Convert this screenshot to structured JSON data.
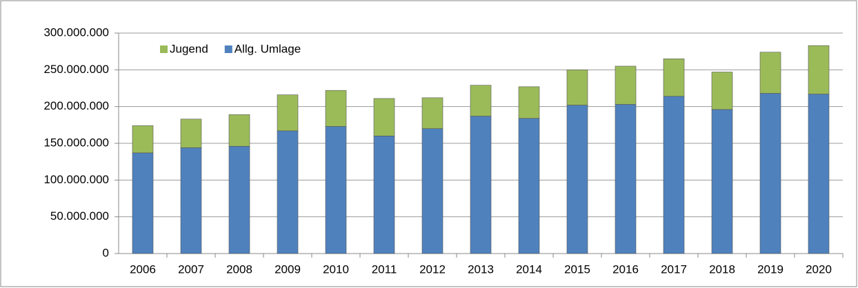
{
  "chart_data": {
    "type": "stacked_bar",
    "categories": [
      "2006",
      "2007",
      "2008",
      "2009",
      "2010",
      "2011",
      "2012",
      "2013",
      "2014",
      "2015",
      "2016",
      "2017",
      "2018",
      "2019",
      "2020"
    ],
    "series": [
      {
        "name": "Allg. Umlage",
        "color": "#4f81bd",
        "values": [
          137000000,
          144000000,
          146000000,
          167000000,
          173000000,
          160000000,
          170000000,
          187000000,
          184000000,
          202000000,
          203000000,
          214000000,
          196000000,
          218000000,
          217000000
        ]
      },
      {
        "name": "Jugend",
        "color": "#9bbb59",
        "values": [
          37000000,
          39000000,
          43000000,
          49000000,
          49000000,
          51000000,
          42000000,
          42000000,
          43000000,
          48000000,
          52000000,
          51000000,
          51000000,
          56000000,
          66000000
        ]
      }
    ],
    "legend_order": [
      1,
      0
    ],
    "ylim": [
      0,
      300000000
    ],
    "yticks": [
      0,
      {
        "value": 50000000,
        "label": "50.000.000"
      },
      {
        "value": 100000000,
        "label": "100.000.000"
      },
      {
        "value": 150000000,
        "label": "150.000.000"
      },
      {
        "value": 200000000,
        "label": "200.000.000"
      },
      {
        "value": 250000000,
        "label": "250.000.000"
      },
      {
        "value": 300000000,
        "label": "300.000.000"
      }
    ],
    "grid": true
  }
}
